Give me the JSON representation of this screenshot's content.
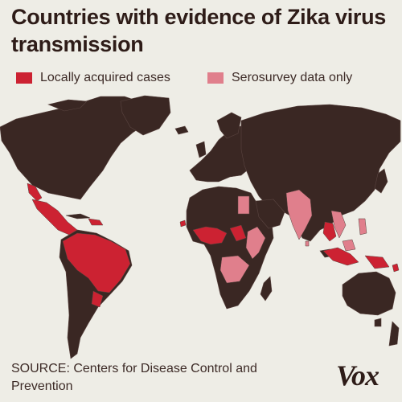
{
  "title": "Countries with evidence of Zika virus transmission",
  "legend": [
    {
      "label": "Locally acquired cases",
      "color": "#cc2232"
    },
    {
      "label": "Serosurvey data only",
      "color": "#e07f8c"
    }
  ],
  "colors": {
    "background": "#eeede6",
    "land": "#3a2723",
    "border": "#5a4440",
    "local": "#cc2232",
    "serosurvey": "#e07f8c"
  },
  "source": "SOURCE: Centers for Disease Control and Prevention",
  "logo": "Vox"
}
